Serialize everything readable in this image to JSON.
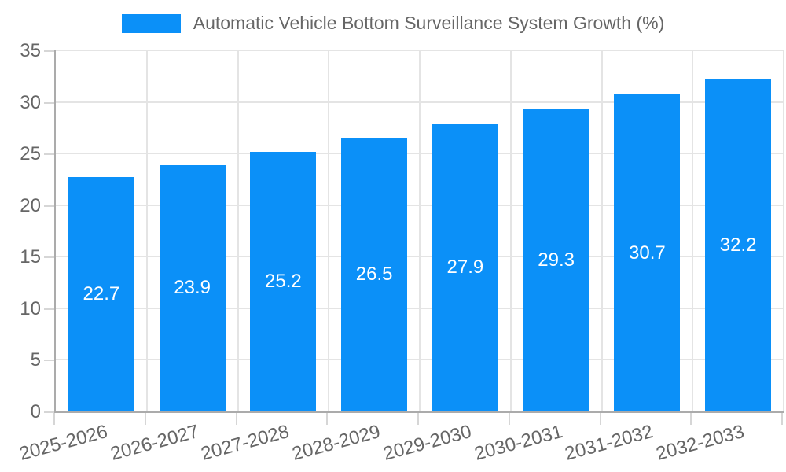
{
  "legend": {
    "label": "Automatic Vehicle Bottom Surveillance System Growth (%)"
  },
  "chart_data": {
    "type": "bar",
    "title": "Automatic Vehicle Bottom Surveillance System Growth (%)",
    "categories": [
      "2025-2026",
      "2026-2027",
      "2027-2028",
      "2028-2029",
      "2029-2030",
      "2030-2031",
      "2031-2032",
      "2032-2033"
    ],
    "values": [
      22.7,
      23.9,
      25.2,
      26.5,
      27.9,
      29.3,
      30.7,
      32.2
    ],
    "value_labels": [
      "22.7",
      "23.9",
      "25.2",
      "26.5",
      "27.9",
      "29.3",
      "30.7",
      "32.2"
    ],
    "xlabel": "",
    "ylabel": "",
    "ylim": [
      0,
      35
    ],
    "ytick_step": 5,
    "ytick_labels": [
      "0",
      "5",
      "10",
      "15",
      "20",
      "25",
      "30",
      "35"
    ],
    "grid": true,
    "legend_position": "top-center",
    "colors": {
      "bar": "#0b90f8",
      "bar_label": "#ffffff",
      "axis_text": "#666666",
      "grid": "#e4e4e4",
      "tick": "#d6d6d6",
      "axis_line": "#ababab",
      "background": "#ffffff"
    }
  }
}
